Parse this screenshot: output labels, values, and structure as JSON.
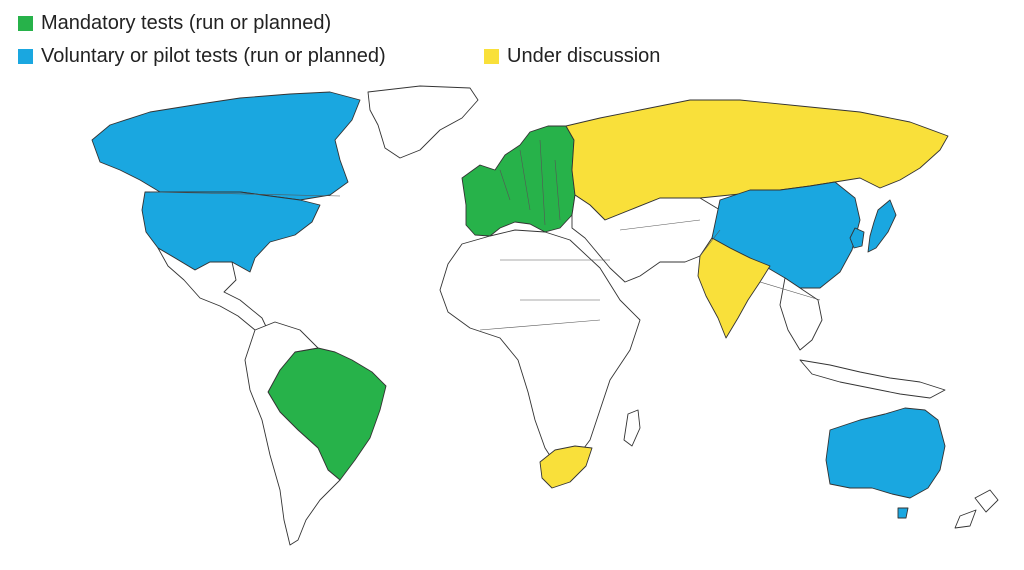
{
  "legend": {
    "items": [
      {
        "label": "Mandatory tests (run or planned)",
        "color": "#27b24a"
      },
      {
        "label": "Voluntary or pilot tests (run or planned)",
        "color": "#1aa7e0"
      },
      {
        "label": "Under discussion",
        "color": "#f9e03a"
      }
    ]
  },
  "colors": {
    "mandatory": "#27b24a",
    "voluntary": "#1aa7e0",
    "discussion": "#f9e03a",
    "none": "#ffffff",
    "outline": "#333333"
  },
  "map": {
    "mandatory_regions": [
      "European Union",
      "Brazil"
    ],
    "voluntary_regions": [
      "Canada",
      "United States",
      "China",
      "Japan",
      "South Korea",
      "Australia"
    ],
    "discussion_regions": [
      "Russia",
      "India",
      "South Africa"
    ]
  }
}
